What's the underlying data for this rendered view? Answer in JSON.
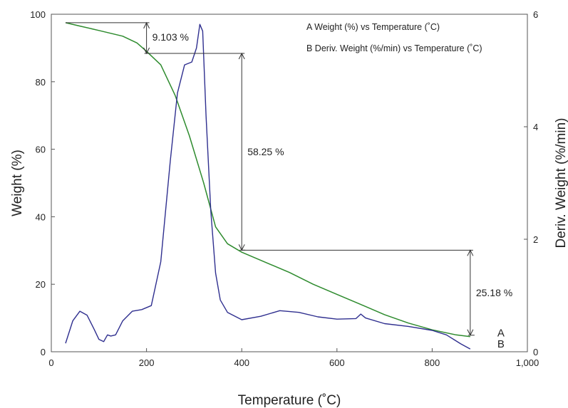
{
  "chart_data": {
    "type": "line",
    "xlabel": "Temperature (˚C)",
    "ylabel": "Weight (%)",
    "y2label": "Deriv. Weight (%/min)",
    "xlim": [
      0,
      1000
    ],
    "ylim": [
      0,
      100
    ],
    "y2lim": [
      0,
      6
    ],
    "x_ticks": [
      "0",
      "200",
      "400",
      "600",
      "800",
      "1,000"
    ],
    "y_ticks": [
      "0",
      "20",
      "40",
      "60",
      "80",
      "100"
    ],
    "y2_ticks": [
      "0",
      "2",
      "4",
      "6"
    ],
    "grid": false,
    "legend_position": "top-right",
    "legend": [
      "A Weight (%) vs Temperature (˚C)",
      "B Deriv. Weight (%/min) vs Temperature (˚C)"
    ],
    "series": [
      {
        "label": "A",
        "axis": "left",
        "color": "#2e8b2e",
        "points": [
          [
            30,
            97.5
          ],
          [
            60,
            96.5
          ],
          [
            100,
            95.2
          ],
          [
            150,
            93.5
          ],
          [
            180,
            91.5
          ],
          [
            200,
            89
          ],
          [
            230,
            85
          ],
          [
            260,
            76
          ],
          [
            290,
            64
          ],
          [
            320,
            50
          ],
          [
            345,
            37
          ],
          [
            370,
            32
          ],
          [
            400,
            29.5
          ],
          [
            450,
            26.5
          ],
          [
            500,
            23.5
          ],
          [
            550,
            20
          ],
          [
            600,
            17
          ],
          [
            650,
            14
          ],
          [
            700,
            11
          ],
          [
            750,
            8.5
          ],
          [
            800,
            6.5
          ],
          [
            850,
            5
          ],
          [
            880,
            4.5
          ]
        ]
      },
      {
        "label": "B",
        "axis": "right",
        "color": "#2f2f8f",
        "points": [
          [
            30,
            0.15
          ],
          [
            45,
            0.55
          ],
          [
            60,
            0.72
          ],
          [
            75,
            0.65
          ],
          [
            90,
            0.4
          ],
          [
            100,
            0.22
          ],
          [
            110,
            0.18
          ],
          [
            118,
            0.3
          ],
          [
            125,
            0.28
          ],
          [
            135,
            0.3
          ],
          [
            150,
            0.55
          ],
          [
            170,
            0.72
          ],
          [
            190,
            0.75
          ],
          [
            210,
            0.82
          ],
          [
            230,
            1.6
          ],
          [
            250,
            3.4
          ],
          [
            265,
            4.6
          ],
          [
            280,
            5.1
          ],
          [
            295,
            5.15
          ],
          [
            305,
            5.4
          ],
          [
            312,
            5.82
          ],
          [
            318,
            5.7
          ],
          [
            325,
            4.2
          ],
          [
            335,
            2.5
          ],
          [
            345,
            1.4
          ],
          [
            355,
            0.92
          ],
          [
            370,
            0.7
          ],
          [
            400,
            0.57
          ],
          [
            440,
            0.63
          ],
          [
            480,
            0.73
          ],
          [
            520,
            0.7
          ],
          [
            560,
            0.62
          ],
          [
            600,
            0.58
          ],
          [
            640,
            0.59
          ],
          [
            650,
            0.67
          ],
          [
            660,
            0.6
          ],
          [
            700,
            0.5
          ],
          [
            750,
            0.45
          ],
          [
            800,
            0.38
          ],
          [
            830,
            0.3
          ],
          [
            845,
            0.22
          ],
          [
            860,
            0.14
          ],
          [
            880,
            0.05
          ]
        ]
      }
    ],
    "annotations": [
      {
        "text": "9.103 %",
        "from_x": 200,
        "y_top": 97.5,
        "y_bottom": 88.4
      },
      {
        "text": "58.25 %",
        "from_x": 400,
        "y_top": 88.4,
        "y_bottom": 30.1
      },
      {
        "text": "25.18 %",
        "from_x": 880,
        "y_top": 30.1,
        "y_bottom": 4.9
      }
    ]
  }
}
